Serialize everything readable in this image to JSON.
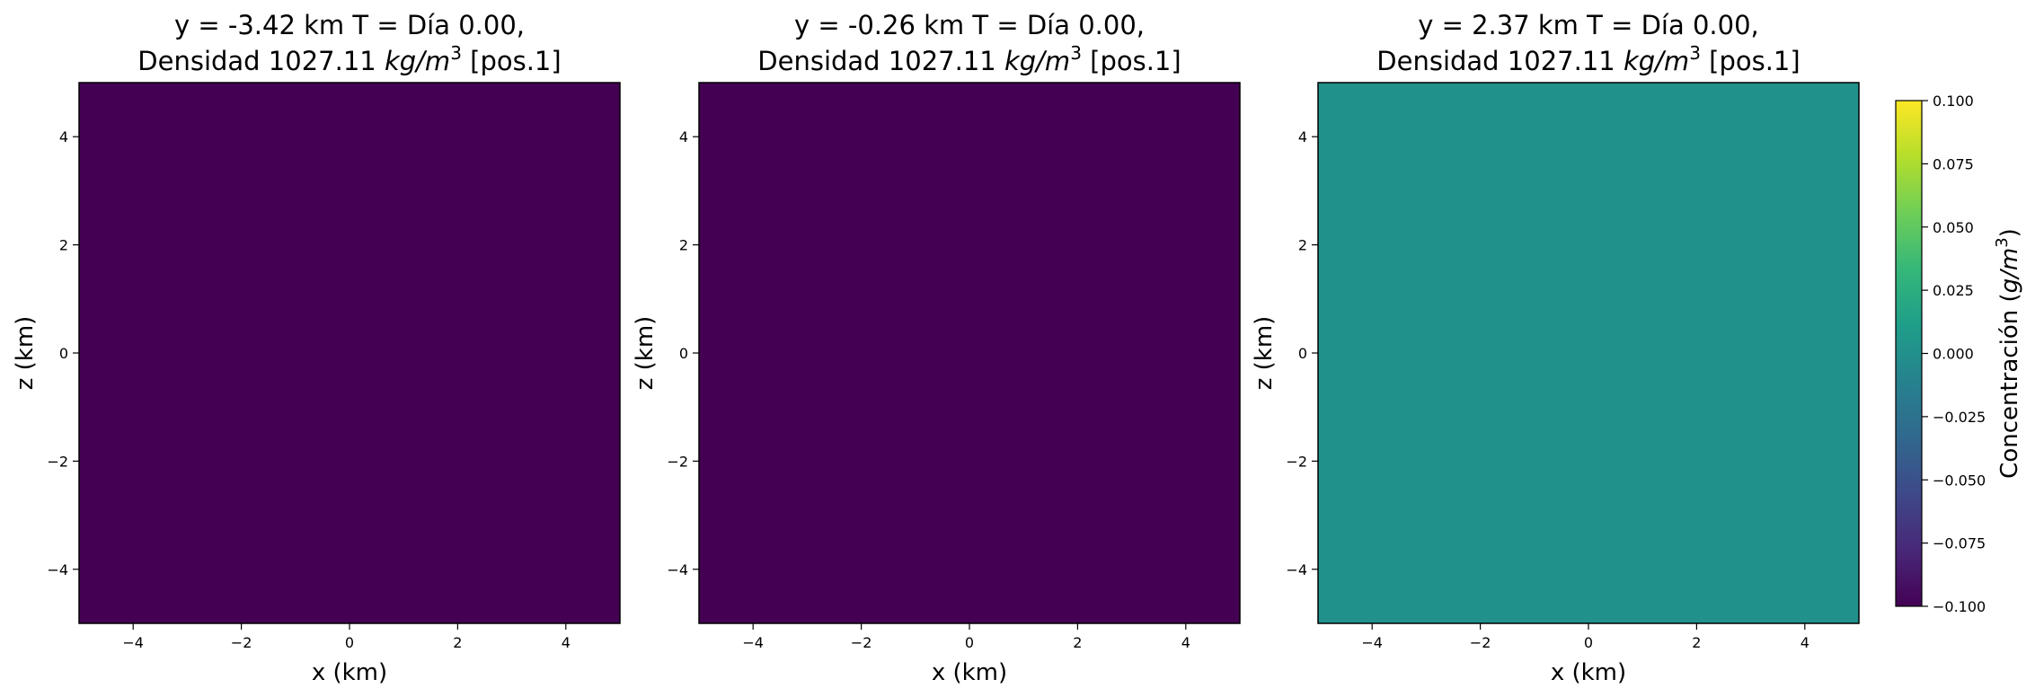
{
  "chart_data": [
    {
      "type": "heatmap",
      "title_line1": "y = -3.42 km  T = Día 0.00,",
      "title_line2_pre": "Densidad 1027.11 ",
      "title_units": "kg/m",
      "title_units_exp": "3",
      "title_line2_post": " [pos.1]",
      "xlabel": "x (km)",
      "ylabel": "z (km)",
      "xlim": [
        -5,
        5
      ],
      "ylim": [
        -5,
        5
      ],
      "xticks": [
        "−4",
        "−2",
        "0",
        "2",
        "4"
      ],
      "yticks": [
        "−4",
        "−2",
        "0",
        "2",
        "4"
      ],
      "value": -0.1,
      "fill_color": "#440154"
    },
    {
      "type": "heatmap",
      "title_line1": "y = -0.26 km  T = Día 0.00,",
      "title_line2_pre": "Densidad 1027.11 ",
      "title_units": "kg/m",
      "title_units_exp": "3",
      "title_line2_post": " [pos.1]",
      "xlabel": "x (km)",
      "ylabel": "z (km)",
      "xlim": [
        -5,
        5
      ],
      "ylim": [
        -5,
        5
      ],
      "xticks": [
        "−4",
        "−2",
        "0",
        "2",
        "4"
      ],
      "yticks": [
        "−4",
        "−2",
        "0",
        "2",
        "4"
      ],
      "value": -0.1,
      "fill_color": "#440154"
    },
    {
      "type": "heatmap",
      "title_line1": "y = 2.37 km  T = Día 0.00,",
      "title_line2_pre": "Densidad 1027.11 ",
      "title_units": "kg/m",
      "title_units_exp": "3",
      "title_line2_post": " [pos.1]",
      "xlabel": "x (km)",
      "ylabel": "z (km)",
      "xlim": [
        -5,
        5
      ],
      "ylim": [
        -5,
        5
      ],
      "xticks": [
        "−4",
        "−2",
        "0",
        "2",
        "4"
      ],
      "yticks": [
        "−4",
        "−2",
        "0",
        "2",
        "4"
      ],
      "value": 0.0,
      "fill_color": "#21918c"
    }
  ],
  "colorbar": {
    "label": "Concentración (",
    "label_units": "g/m",
    "label_exp": "3",
    "label_close": ")",
    "range": [
      -0.1,
      0.1
    ],
    "ticks": [
      "0.100",
      "0.075",
      "0.050",
      "0.025",
      "0.000",
      "−0.025",
      "−0.050",
      "−0.075",
      "−0.100"
    ],
    "colormap": "viridis",
    "colors": [
      "#fde725",
      "#b5de2b",
      "#6ece58",
      "#35b779",
      "#1f9e89",
      "#26828e",
      "#31688e",
      "#3e4989",
      "#482878",
      "#440154"
    ]
  }
}
